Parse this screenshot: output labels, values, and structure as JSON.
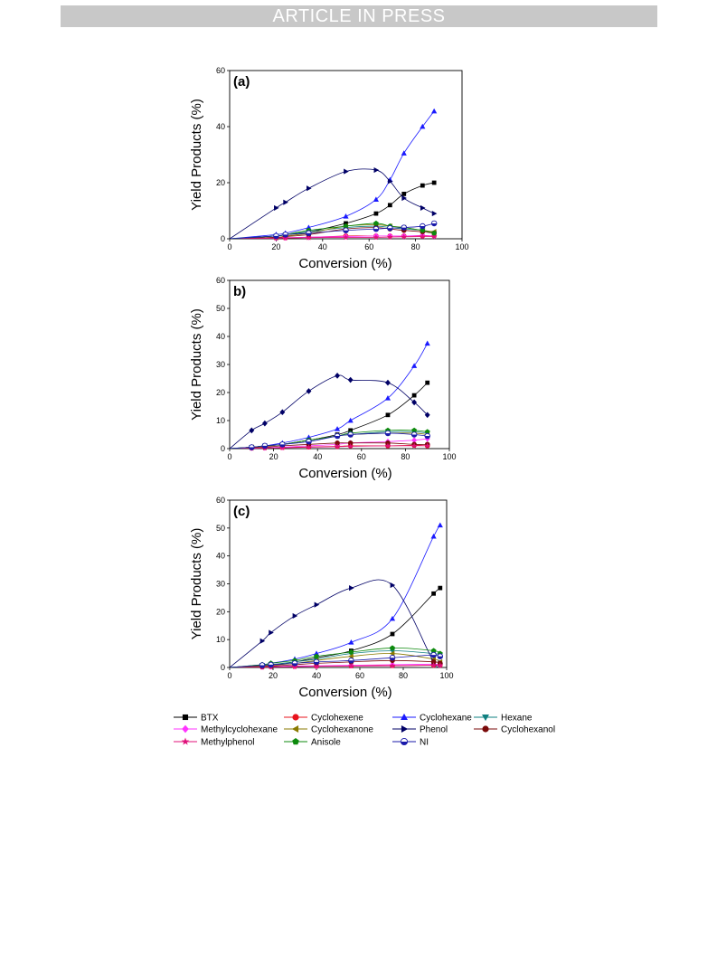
{
  "header": {
    "banner": "ARTICLE IN PRESS"
  },
  "colors": {
    "BTX": "#000000",
    "Cyclohexene": "#e8141e",
    "Cyclohexane": "#1a1aff",
    "Hexane": "#0f8080",
    "Methylcyclohexane": "#ff33ff",
    "Cyclohexanone": "#8a7a00",
    "Phenol": "#000066",
    "Cyclohexanol": "#7a0a0a",
    "Methylphenol": "#e0107a",
    "Anisole": "#0d8a0d",
    "NI": "#1a1aaa"
  },
  "legend": {
    "items": [
      "BTX",
      "Cyclohexene",
      "Cyclohexane",
      "Hexane",
      "Methylcyclohexane",
      "Cyclohexanone",
      "Phenol",
      "Cyclohexanol",
      "Methylphenol",
      "Anisole",
      "NI"
    ]
  },
  "chart_data": [
    {
      "type": "scatter",
      "panel_label": "(a)",
      "xlabel": "Conversion (%)",
      "ylabel": "Yield Products (%)",
      "xlim": [
        0,
        100
      ],
      "ylim": [
        0,
        60
      ],
      "xticks": [
        0,
        20,
        40,
        60,
        80,
        100
      ],
      "yticks": [
        0,
        20,
        40,
        60
      ],
      "series": [
        {
          "name": "BTX",
          "marker": "square",
          "x": [
            0,
            20,
            24,
            34,
            50,
            63,
            69,
            75,
            83,
            88
          ],
          "y": [
            0,
            1,
            1.5,
            2.5,
            5.5,
            9,
            12,
            16,
            19,
            20
          ]
        },
        {
          "name": "Cyclohexene",
          "marker": "circle",
          "x": [
            0,
            20,
            24,
            34,
            50,
            63,
            69,
            75,
            83,
            88
          ],
          "y": [
            0,
            0.3,
            0.3,
            0.5,
            1,
            1,
            1,
            1,
            1,
            1
          ]
        },
        {
          "name": "Cyclohexane",
          "marker": "triangle-up",
          "x": [
            0,
            20,
            24,
            34,
            50,
            63,
            69,
            75,
            83,
            88
          ],
          "y": [
            0,
            1.5,
            2,
            4,
            8,
            14,
            21,
            30.5,
            40,
            45.5
          ]
        },
        {
          "name": "Hexane",
          "marker": "triangle-down",
          "x": [
            0,
            20,
            24,
            34,
            50,
            63,
            69,
            75,
            83,
            88
          ],
          "y": [
            0,
            1,
            1.5,
            2.5,
            4,
            4.5,
            4,
            3.5,
            3,
            2
          ]
        },
        {
          "name": "Methylcyclohexane",
          "marker": "diamond",
          "x": [
            0,
            20,
            24,
            34,
            50,
            63,
            69,
            75,
            83,
            88
          ],
          "y": [
            0,
            0.3,
            0.4,
            0.6,
            0.8,
            1,
            1,
            1,
            1.2,
            1
          ]
        },
        {
          "name": "Cyclohexanone",
          "marker": "triangle-left",
          "x": [
            0,
            20,
            24,
            34,
            50,
            63,
            69,
            75,
            83,
            88
          ],
          "y": [
            0,
            0.5,
            1,
            2,
            4.5,
            5,
            4.5,
            4,
            3,
            2.5
          ]
        },
        {
          "name": "Phenol",
          "marker": "triangle-right",
          "x": [
            0,
            20,
            24,
            34,
            50,
            63,
            69,
            75,
            83,
            88
          ],
          "y": [
            0,
            11,
            13,
            18,
            24,
            24.5,
            20.5,
            14.5,
            11,
            9
          ]
        },
        {
          "name": "Cyclohexanol",
          "marker": "circle",
          "x": [
            0,
            20,
            24,
            34,
            50,
            63,
            69,
            75,
            83,
            88
          ],
          "y": [
            0,
            0.5,
            0.8,
            1.5,
            3.5,
            4,
            3.5,
            3,
            2.5,
            2
          ]
        },
        {
          "name": "Methylphenol",
          "marker": "star",
          "x": [
            0,
            20,
            24,
            34,
            50,
            63,
            69,
            75,
            83,
            88
          ],
          "y": [
            0,
            0.2,
            0.3,
            0.4,
            0.5,
            0.5,
            0.6,
            0.7,
            0.8,
            0.8
          ]
        },
        {
          "name": "Anisole",
          "marker": "pentagon",
          "x": [
            0,
            20,
            24,
            34,
            50,
            63,
            69,
            75,
            83,
            88
          ],
          "y": [
            0,
            1,
            1.5,
            3,
            4.5,
            5.5,
            4.5,
            4,
            3,
            2
          ]
        },
        {
          "name": "NI",
          "marker": "circle-half",
          "x": [
            0,
            20,
            24,
            34,
            50,
            63,
            69,
            75,
            83,
            88
          ],
          "y": [
            0,
            1,
            1.5,
            2,
            3,
            3.5,
            3.8,
            4,
            4.5,
            5.5
          ]
        }
      ]
    },
    {
      "type": "scatter",
      "panel_label": "b)",
      "xlabel": "Conversion (%)",
      "ylabel": "Yield Products (%)",
      "xlim": [
        0,
        100
      ],
      "ylim": [
        0,
        60
      ],
      "xticks": [
        0,
        20,
        40,
        60,
        80,
        100
      ],
      "yticks": [
        0,
        10,
        20,
        30,
        40,
        50,
        60
      ],
      "series": [
        {
          "name": "BTX",
          "marker": "square",
          "x": [
            0,
            10,
            16,
            24,
            36,
            49,
            55,
            72,
            84,
            90
          ],
          "y": [
            0,
            0.5,
            1,
            1.5,
            3,
            5,
            6.5,
            12,
            19,
            23.5
          ]
        },
        {
          "name": "Cyclohexene",
          "marker": "circle",
          "x": [
            0,
            10,
            16,
            24,
            36,
            49,
            55,
            72,
            84,
            90
          ],
          "y": [
            0,
            0.2,
            0.3,
            0.4,
            0.6,
            0.8,
            1,
            1,
            1.2,
            1
          ]
        },
        {
          "name": "Cyclohexane",
          "marker": "triangle-up",
          "x": [
            0,
            10,
            16,
            24,
            36,
            49,
            55,
            72,
            84,
            90
          ],
          "y": [
            0,
            0.5,
            1,
            2,
            4,
            7,
            10,
            18,
            29.5,
            37.5
          ]
        },
        {
          "name": "Hexane",
          "marker": "triangle-down",
          "x": [
            0,
            10,
            16,
            24,
            36,
            49,
            55,
            72,
            84,
            90
          ],
          "y": [
            0,
            0.5,
            1,
            1.5,
            3,
            4.5,
            5,
            6,
            6,
            5.5
          ]
        },
        {
          "name": "Methylcyclohexane",
          "marker": "diamond",
          "x": [
            0,
            10,
            16,
            24,
            36,
            49,
            55,
            72,
            84,
            90
          ],
          "y": [
            0,
            0.2,
            0.3,
            0.5,
            1,
            1.5,
            2,
            2.5,
            3,
            3.5
          ]
        },
        {
          "name": "Cyclohexanone",
          "marker": "triangle-left",
          "x": [
            0,
            10,
            16,
            24,
            36,
            49,
            55,
            72,
            84,
            90
          ],
          "y": [
            0,
            0.5,
            0.8,
            1.5,
            3,
            4.5,
            5,
            5.5,
            5.5,
            5
          ]
        },
        {
          "name": "Phenol",
          "marker": "diamond",
          "x": [
            0,
            10,
            16,
            24,
            36,
            49,
            55,
            72,
            84,
            90
          ],
          "y": [
            0,
            6.5,
            9,
            13,
            20.5,
            26,
            24.5,
            23.5,
            16.5,
            12
          ]
        },
        {
          "name": "Cyclohexanol",
          "marker": "circle",
          "x": [
            0,
            10,
            16,
            24,
            36,
            49,
            55,
            72,
            84,
            90
          ],
          "y": [
            0,
            0.3,
            0.5,
            1,
            1.5,
            2,
            2,
            2,
            1.5,
            1.5
          ]
        },
        {
          "name": "Methylphenol",
          "marker": "star",
          "x": [
            0,
            10,
            16,
            24,
            36,
            49,
            55,
            72,
            84,
            90
          ],
          "y": [
            0,
            0.1,
            0.2,
            0.3,
            0.5,
            0.7,
            0.8,
            1,
            1,
            1
          ]
        },
        {
          "name": "Anisole",
          "marker": "pentagon",
          "x": [
            0,
            10,
            16,
            24,
            36,
            49,
            55,
            72,
            84,
            90
          ],
          "y": [
            0,
            0.5,
            1,
            1.5,
            3,
            4.5,
            5.5,
            6.5,
            6.5,
            6
          ]
        },
        {
          "name": "NI",
          "marker": "circle-half",
          "x": [
            0,
            10,
            16,
            24,
            36,
            49,
            55,
            72,
            84,
            90
          ],
          "y": [
            0,
            0.5,
            1,
            1.5,
            2.5,
            4.5,
            5,
            5.5,
            5,
            4.5
          ]
        }
      ]
    },
    {
      "type": "scatter",
      "panel_label": "(c)",
      "xlabel": "Conversion (%)",
      "ylabel": "Yield Products (%)",
      "xlim": [
        0,
        100
      ],
      "ylim": [
        0,
        60
      ],
      "xticks": [
        0,
        20,
        40,
        60,
        80,
        100
      ],
      "yticks": [
        0,
        10,
        20,
        30,
        40,
        50,
        60
      ],
      "series": [
        {
          "name": "BTX",
          "marker": "square",
          "x": [
            0,
            15,
            19,
            30,
            40,
            56,
            75,
            94,
            97
          ],
          "y": [
            0,
            0.8,
            1,
            2,
            3.5,
            6,
            12,
            26.5,
            28.5
          ]
        },
        {
          "name": "Cyclohexene",
          "marker": "circle",
          "x": [
            0,
            15,
            19,
            30,
            40,
            56,
            75,
            94,
            97
          ],
          "y": [
            0,
            0.2,
            0.3,
            0.4,
            0.5,
            0.6,
            0.7,
            0.8,
            0.8
          ]
        },
        {
          "name": "Cyclohexane",
          "marker": "triangle-up",
          "x": [
            0,
            15,
            19,
            30,
            40,
            56,
            75,
            94,
            97
          ],
          "y": [
            0,
            1,
            1.5,
            3,
            5,
            9,
            17.5,
            47,
            51
          ]
        },
        {
          "name": "Hexane",
          "marker": "triangle-down",
          "x": [
            0,
            15,
            19,
            30,
            40,
            56,
            75,
            94,
            97
          ],
          "y": [
            0,
            0.8,
            1,
            2,
            3,
            5,
            6,
            5,
            4.5
          ]
        },
        {
          "name": "Methylcyclohexane",
          "marker": "diamond",
          "x": [
            0,
            15,
            19,
            30,
            40,
            56,
            75,
            94,
            97
          ],
          "y": [
            0,
            0.2,
            0.3,
            0.5,
            0.6,
            0.8,
            1,
            1.2,
            1
          ]
        },
        {
          "name": "Cyclohexanone",
          "marker": "triangle-left",
          "x": [
            0,
            15,
            19,
            30,
            40,
            56,
            75,
            94,
            97
          ],
          "y": [
            0,
            0.5,
            0.8,
            1.5,
            2.5,
            4,
            5,
            3,
            2
          ]
        },
        {
          "name": "Phenol",
          "marker": "triangle-right",
          "x": [
            0,
            15,
            19,
            30,
            40,
            56,
            75,
            94,
            97
          ],
          "y": [
            0,
            9.5,
            12.5,
            18.5,
            22.5,
            28.5,
            29.5,
            2,
            1.5
          ]
        },
        {
          "name": "Cyclohexanol",
          "marker": "circle",
          "x": [
            0,
            15,
            19,
            30,
            40,
            56,
            75,
            94,
            97
          ],
          "y": [
            0,
            0.3,
            0.5,
            1,
            1.5,
            2,
            2.5,
            2,
            1.5
          ]
        },
        {
          "name": "Methylphenol",
          "marker": "star",
          "x": [
            0,
            15,
            19,
            30,
            40,
            56,
            75,
            94,
            97
          ],
          "y": [
            0,
            0.1,
            0.2,
            0.3,
            0.4,
            0.5,
            0.6,
            0.8,
            0.8
          ]
        },
        {
          "name": "Anisole",
          "marker": "pentagon",
          "x": [
            0,
            15,
            19,
            30,
            40,
            56,
            75,
            94,
            97
          ],
          "y": [
            0,
            1,
            1.5,
            2.5,
            4,
            5.5,
            7,
            6,
            5
          ]
        },
        {
          "name": "NI",
          "marker": "circle-half",
          "x": [
            0,
            15,
            19,
            30,
            40,
            56,
            75,
            94,
            97
          ],
          "y": [
            0,
            0.8,
            1,
            1.5,
            2,
            2.5,
            3.5,
            4.5,
            4
          ]
        }
      ]
    }
  ]
}
